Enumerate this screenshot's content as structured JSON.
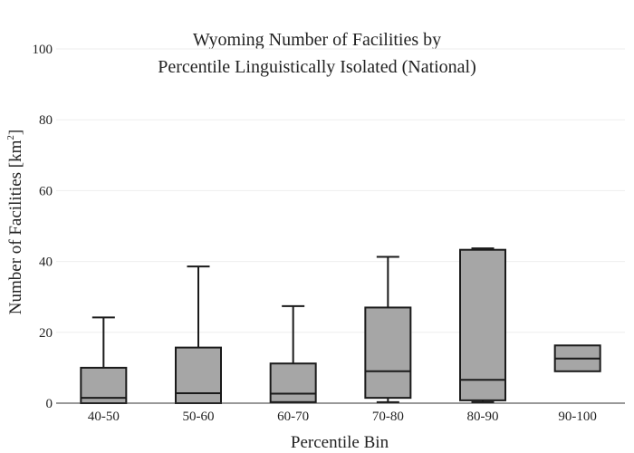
{
  "chart_data": {
    "type": "box",
    "title_line1": "Wyoming Number of Facilities by",
    "title_line2": "Percentile Linguistically Isolated (National)",
    "xlabel": "Percentile Bin",
    "ylabel_main": "Number of Facilities  [km",
    "ylabel_sup": "2",
    "ylabel_end": "]",
    "ylim": [
      0,
      100
    ],
    "y_ticks": [
      0,
      20,
      40,
      60,
      80,
      100
    ],
    "grid": true,
    "box_color": "#a6a6a6",
    "line_color": "#1a1a1a",
    "categories": [
      "40-50",
      "50-60",
      "60-70",
      "70-80",
      "80-90",
      "90-100"
    ],
    "boxes": [
      {
        "min": 0,
        "q1": 0,
        "median": 1.5,
        "q3": 10,
        "max": 24.2
      },
      {
        "min": 0,
        "q1": 0,
        "median": 2.8,
        "q3": 15.7,
        "max": 38.6
      },
      {
        "min": 0.3,
        "q1": 0.3,
        "median": 2.7,
        "q3": 11.2,
        "max": 27.4
      },
      {
        "min": 0.3,
        "q1": 1.5,
        "median": 9,
        "q3": 27,
        "max": 41.3
      },
      {
        "min": 0.3,
        "q1": 0.8,
        "median": 6.6,
        "q3": 43.3,
        "max": 43.7
      },
      {
        "min": 9,
        "q1": 9,
        "median": 12.6,
        "q3": 16.3,
        "max": 16.3
      }
    ]
  }
}
